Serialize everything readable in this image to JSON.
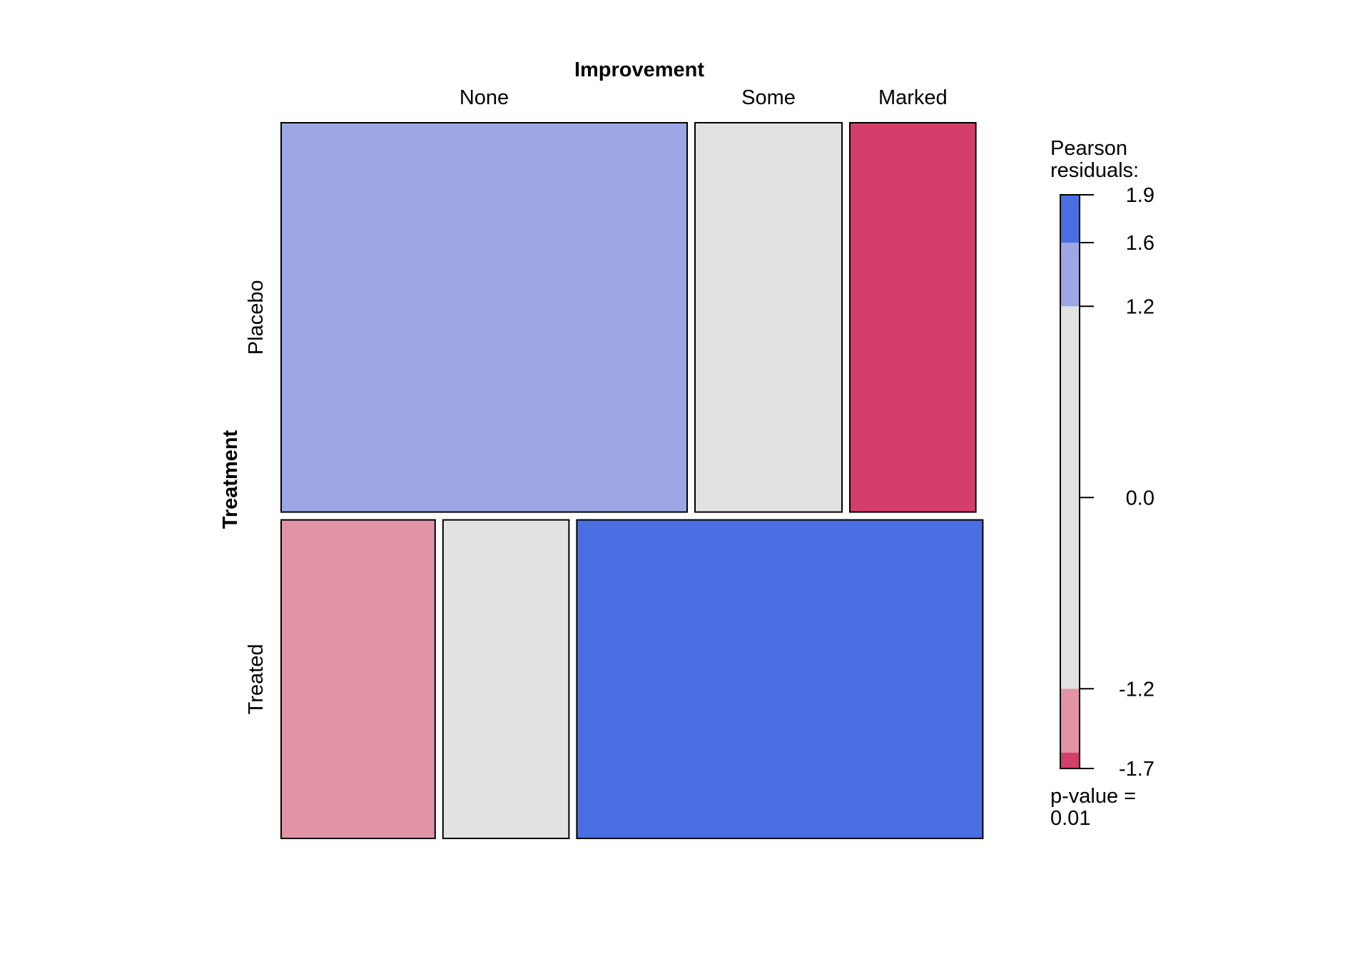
{
  "chart_data": {
    "type": "mosaic",
    "title": "",
    "column_variable": "Improvement",
    "row_variable": "Treatment",
    "columns": [
      "None",
      "Some",
      "Marked"
    ],
    "rows": [
      "Placebo",
      "Treated"
    ],
    "row_proportions": [
      0.55,
      0.45
    ],
    "cells": [
      {
        "row": "Placebo",
        "col": "None",
        "proportion": 0.58,
        "residual": 1.5,
        "color": "#9DA7E4"
      },
      {
        "row": "Placebo",
        "col": "Some",
        "proportion": 0.21,
        "residual": 0.3,
        "color": "#E2E2E2"
      },
      {
        "row": "Placebo",
        "col": "Marked",
        "proportion": 0.18,
        "residual": -1.7,
        "color": "#D33F6A"
      },
      {
        "row": "Treated",
        "col": "None",
        "proportion": 0.22,
        "residual": -1.4,
        "color": "#E293A5"
      },
      {
        "row": "Treated",
        "col": "Some",
        "proportion": 0.18,
        "residual": -0.3,
        "color": "#E2E2E2"
      },
      {
        "row": "Treated",
        "col": "Marked",
        "proportion": 0.58,
        "residual": 1.9,
        "color": "#4A6FE3"
      }
    ],
    "legend": {
      "title_line1": "Pearson",
      "title_line2": "residuals:",
      "range": [
        -1.7,
        1.9
      ],
      "ticks": [
        "1.9",
        "1.6",
        "1.2",
        "0.0",
        "-1.2",
        "-1.7"
      ],
      "tick_values": [
        1.9,
        1.6,
        1.2,
        0.0,
        -1.2,
        -1.7
      ],
      "bands": [
        {
          "from": 1.6,
          "to": 1.9,
          "color": "#4A6FE3"
        },
        {
          "from": 1.2,
          "to": 1.6,
          "color": "#9DA7E4"
        },
        {
          "from": -1.2,
          "to": 1.2,
          "color": "#E2E2E2"
        },
        {
          "from": -1.6,
          "to": -1.2,
          "color": "#E293A5"
        },
        {
          "from": -1.7,
          "to": -1.6,
          "color": "#D33F6A"
        }
      ],
      "pvalue_line1": "p-value =",
      "pvalue_line2": "0.01"
    }
  }
}
